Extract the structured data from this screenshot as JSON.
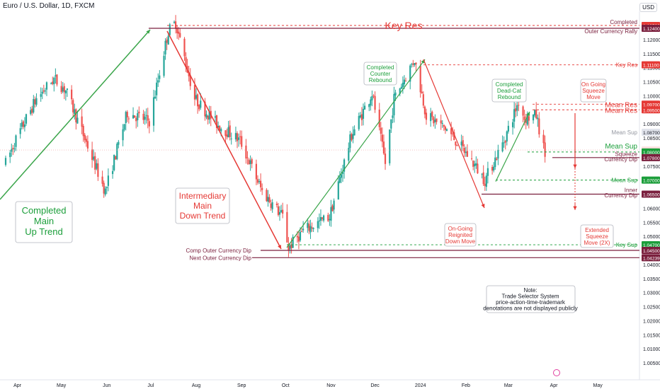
{
  "header": {
    "title": "Euro / U.S. Dollar, 1D, FXCM"
  },
  "currency_label": "USD",
  "colors": {
    "up": "#26a69a",
    "down": "#ef5350",
    "green_line": "#3aa54a",
    "red_line": "#e53935",
    "maroon": "#8b1a3a",
    "label_red": "#e53935",
    "label_green": "#1b9e3a",
    "tag_green": "#1b9e3a",
    "tag_red": "#e53935",
    "tag_maroon": "#7a1f3d",
    "grid": "#f0f3fa"
  },
  "chart_data": {
    "type": "candlestick",
    "title": "Euro / U.S. Dollar, 1D, FXCM",
    "ylim": [
      1.003,
      1.128
    ],
    "xlim": [
      "2023-03-24",
      "2024-05-28"
    ],
    "y_tick_values": [
      1.005,
      1.01,
      1.015,
      1.02,
      1.025,
      1.03,
      1.035,
      1.04,
      1.045,
      1.05,
      1.055,
      1.06,
      1.065,
      1.07,
      1.075,
      1.08,
      1.085,
      1.09,
      1.095,
      1.1,
      1.105,
      1.11,
      1.115,
      1.12,
      1.125
    ],
    "y_tick_labels": [
      "1.00500",
      "1.01000",
      "1.01500",
      "1.02000",
      "1.02500",
      "1.03000",
      "1.03500",
      "1.04000",
      "1.04500",
      "1.05000",
      "1.05500",
      "1.06000",
      "1.06500",
      "1.07000",
      "1.07500",
      "1.08000",
      "1.08500",
      "1.09000",
      "1.09500",
      "1.10000",
      "1.10500",
      "1.11000",
      "1.11500",
      "1.12000",
      "1.12500"
    ],
    "x_ticks": [
      {
        "date": "2023-04-01",
        "label": "Apr"
      },
      {
        "date": "2023-05-01",
        "label": "May"
      },
      {
        "date": "2023-06-01",
        "label": "Jun"
      },
      {
        "date": "2023-07-01",
        "label": "Jul"
      },
      {
        "date": "2023-08-01",
        "label": "Aug"
      },
      {
        "date": "2023-09-01",
        "label": "Sep"
      },
      {
        "date": "2023-10-01",
        "label": "Oct"
      },
      {
        "date": "2023-11-01",
        "label": "Nov"
      },
      {
        "date": "2023-12-01",
        "label": "Dec"
      },
      {
        "date": "2024-01-01",
        "label": "2024"
      },
      {
        "date": "2024-02-01",
        "label": "Feb"
      },
      {
        "date": "2024-03-01",
        "label": "Mar"
      },
      {
        "date": "2024-04-01",
        "label": "Apr"
      },
      {
        "date": "2024-05-01",
        "label": "May"
      }
    ],
    "price_path": [
      [
        "2023-03-24",
        1.076
      ],
      [
        "2023-03-31",
        1.0845
      ],
      [
        "2023-04-14",
        1.099
      ],
      [
        "2023-04-26",
        1.106
      ],
      [
        "2023-05-04",
        1.102
      ],
      [
        "2023-05-31",
        1.066
      ],
      [
        "2023-06-15",
        1.094
      ],
      [
        "2023-06-30",
        1.091
      ],
      [
        "2023-07-13",
        1.123
      ],
      [
        "2023-07-18",
        1.126
      ],
      [
        "2023-07-31",
        1.099
      ],
      [
        "2023-08-15",
        1.09
      ],
      [
        "2023-08-31",
        1.084
      ],
      [
        "2023-09-15",
        1.066
      ],
      [
        "2023-09-29",
        1.057
      ],
      [
        "2023-10-03",
        1.046
      ],
      [
        "2023-10-13",
        1.052
      ],
      [
        "2023-10-31",
        1.057
      ],
      [
        "2023-11-15",
        1.086
      ],
      [
        "2023-11-29",
        1.101
      ],
      [
        "2023-12-08",
        1.076
      ],
      [
        "2023-12-14",
        1.099
      ],
      [
        "2023-12-28",
        1.113
      ],
      [
        "2024-01-05",
        1.093
      ],
      [
        "2024-01-19",
        1.088
      ],
      [
        "2024-02-02",
        1.079
      ],
      [
        "2024-02-14",
        1.07
      ],
      [
        "2024-02-27",
        1.084
      ],
      [
        "2024-03-08",
        1.098
      ],
      [
        "2024-03-12",
        1.092
      ],
      [
        "2024-03-20",
        1.093
      ],
      [
        "2024-03-26",
        1.079
      ]
    ],
    "levels": [
      {
        "value": 1.125,
        "tag": "1.12500",
        "color": "#e53935",
        "label": "Completed",
        "label_color": "#7a1f3d",
        "style": "dashed"
      },
      {
        "value": 1.124,
        "tag": "1.12400",
        "color": "#7a1f3d",
        "label": "Outer Currency Rally",
        "label_color": "#7a1f3d",
        "style": "solid"
      },
      {
        "value": 1.111,
        "tag": "1.11100",
        "color": "#e53935",
        "label": "Key Res",
        "label_color": "#e53935",
        "style": "dashed"
      },
      {
        "value": 1.097,
        "tag": "1.09700",
        "color": "#e53935",
        "label": "Mean Res",
        "label_color": "#e53935",
        "style": "dashed"
      },
      {
        "value": 1.095,
        "tag": "1.09500",
        "color": "#e53935",
        "label": "Mean Res",
        "label_color": "#e53935",
        "style": "dashed"
      },
      {
        "value": 1.087,
        "tag": "1.08700",
        "color": "#b2b5be",
        "label": "Mean Sup",
        "label_color": "#9598a1",
        "style": "none"
      },
      {
        "value": 1.0807,
        "tag": "1.08066",
        "color": "#ef9a9a",
        "label": "",
        "label_color": "#e53935",
        "style": "none"
      },
      {
        "value": 1.08,
        "tag": "1.08000",
        "color": "#1b9e3a",
        "label": "Mean Sup",
        "label_color": "#1b9e3a",
        "style": "dashed"
      },
      {
        "value": 1.078,
        "tag": "1.07800",
        "color": "#7a1f3d",
        "label": "Squeeze Currency Dip",
        "label_color": "#7a1f3d",
        "style": "solid"
      },
      {
        "value": 1.07,
        "tag": "1.07000",
        "color": "#1b9e3a",
        "label": "Mean Sup",
        "label_color": "#1b9e3a",
        "style": "dashed"
      },
      {
        "value": 1.065,
        "tag": "1.06500",
        "color": "#7a1f3d",
        "label": "Inner Currency Dip",
        "label_color": "#7a1f3d",
        "style": "solid"
      },
      {
        "value": 1.047,
        "tag": "1.04700",
        "color": "#1b9e3a",
        "label": "Key Sup",
        "label_color": "#1b9e3a",
        "style": "dashed"
      },
      {
        "value": 1.045,
        "tag": "1.04500",
        "color": "#7a1f3d",
        "label": "Comp Outer Currency Dip",
        "label_color": "#7a1f3d",
        "style": "solid"
      },
      {
        "value": 1.0424,
        "tag": "1.04239",
        "color": "#7a1f3d",
        "label": "Next Outer Currency Dip",
        "label_color": "#7a1f3d",
        "style": "solid"
      }
    ],
    "annotations": [
      {
        "text": "Key Res",
        "color": "#e53935"
      },
      {
        "text": "Completed Main Up Trend",
        "color": "#1b9e3a"
      },
      {
        "text": "Intermediary Main Down Trend",
        "color": "#e53935"
      },
      {
        "text": "Completed Counter Rebound",
        "color": "#1b9e3a"
      },
      {
        "text": "Completed Dead-Cat Rebound",
        "color": "#1b9e3a"
      },
      {
        "text": "On Going Squeeze Move",
        "color": "#e53935"
      },
      {
        "text": "On-Going Reignited Down Move",
        "color": "#e53935"
      },
      {
        "text": "Extended Squeeze Move (2X)",
        "color": "#e53935"
      },
      {
        "text": "Note: Trade Selector System price-action-time-trademark denotations are not displayed publicly",
        "color": "#131722"
      }
    ]
  }
}
